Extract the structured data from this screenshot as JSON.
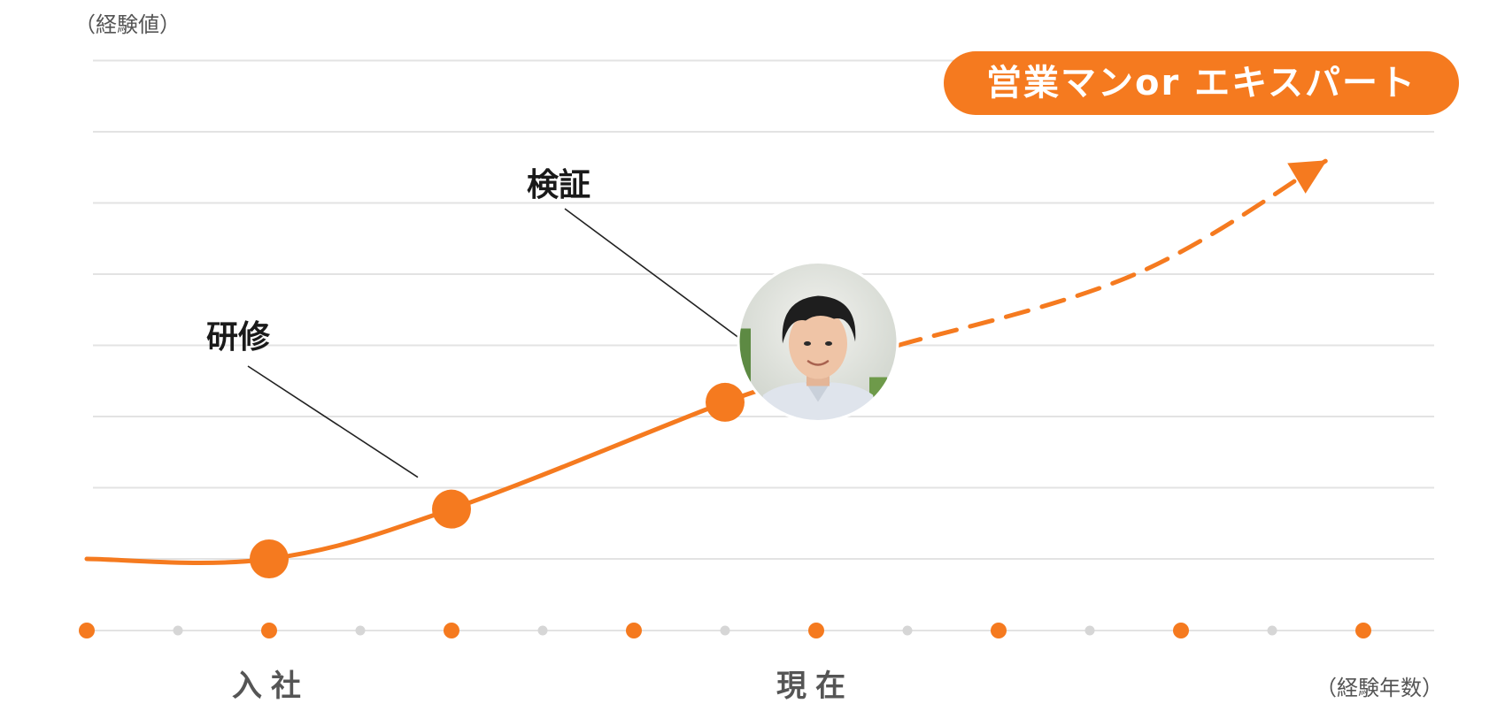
{
  "chart_data": {
    "type": "line",
    "ylabel": "（経験値）",
    "xlabel": "（経験年数）",
    "x_ticks": 15,
    "major_ticks": [
      0,
      2,
      4,
      6,
      8,
      10,
      12,
      14
    ],
    "tick_labels": [
      {
        "x": 2,
        "label": "入社"
      },
      {
        "x": 8,
        "label": "現在"
      }
    ],
    "ylim": [
      0,
      8
    ],
    "grid": true,
    "grid_lines": 8,
    "series": [
      {
        "style": "solid",
        "points": [
          [
            0,
            0
          ],
          [
            2,
            0
          ],
          [
            4,
            0.7
          ],
          [
            7,
            2.2
          ],
          [
            7.8,
            2.5
          ]
        ]
      },
      {
        "style": "dashed",
        "points": [
          [
            8.9,
            3.0
          ],
          [
            11.5,
            4.0
          ],
          [
            13.6,
            5.6
          ]
        ],
        "arrow": true
      }
    ],
    "milestones": [
      {
        "x": 2,
        "y": 0
      },
      {
        "x": 4,
        "y": 0.7,
        "annotation": "研修"
      },
      {
        "x": 7,
        "y": 2.2,
        "annotation": "検証"
      }
    ],
    "current_marker": {
      "x": 8,
      "y": 3.0,
      "avatar": "person-photo"
    },
    "goal_label": "営業マンor エキスパート",
    "colors": {
      "accent": "#f57a1f",
      "grid": "#e3e3e3",
      "minor_tick": "#d6d6d6",
      "leader": "#222222"
    }
  }
}
